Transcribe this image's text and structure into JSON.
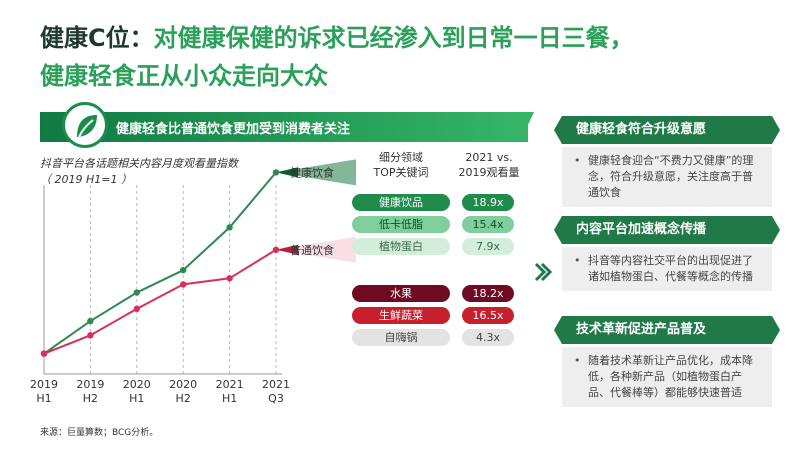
{
  "title": {
    "line1_prefix": "健康C位：",
    "line1_rest": "对健康保健的诉求已经渗入到日常一日三餐，",
    "line2": "健康轻食正从小众走向大众"
  },
  "banner": {
    "text": "健康轻食比普通饮食更加受到消费者关注"
  },
  "chart_subtitle": {
    "line1": "抖音平台各话题相关内容月度观看量指数",
    "line2": "（ 2019 H1=1 ）"
  },
  "table_headers": {
    "category_line1": "细分领域",
    "category_line2": "TOP关键词",
    "value_line1": "2021 vs.",
    "value_line2": "2019观看量"
  },
  "chart_data": {
    "type": "line",
    "x": [
      "2019 H1",
      "2019 H2",
      "2020 H1",
      "2020 H2",
      "2021 H1",
      "2021 Q3"
    ],
    "x_ticks": [
      {
        "line1": "2019",
        "line2": "H1"
      },
      {
        "line1": "2019",
        "line2": "H2"
      },
      {
        "line1": "2020",
        "line2": "H1"
      },
      {
        "line1": "2020",
        "line2": "H2"
      },
      {
        "line1": "2021",
        "line2": "H1"
      },
      {
        "line1": "2021",
        "line2": "Q3"
      }
    ],
    "series": [
      {
        "name": "健康饮食",
        "color": "#2e8a4e",
        "values": [
          1.0,
          2.6,
          4.0,
          5.1,
          7.2,
          9.9
        ]
      },
      {
        "name": "普通饮食",
        "color": "#d8305a",
        "values": [
          1.0,
          1.9,
          3.2,
          4.4,
          4.7,
          6.1
        ]
      }
    ],
    "ylim": [
      0,
      11
    ],
    "grid": "vertical dashed"
  },
  "keywords_healthy": [
    {
      "label": "健康饮品",
      "value": "18.9x",
      "style": "g1"
    },
    {
      "label": "低卡低脂",
      "value": "15.4x",
      "style": "g2"
    },
    {
      "label": "植物蛋白",
      "value": "7.9x",
      "style": "g3"
    }
  ],
  "keywords_regular": [
    {
      "label": "水果",
      "value": "18.2x",
      "style": "r1"
    },
    {
      "label": "生鲜蔬菜",
      "value": "16.5x",
      "style": "r2"
    },
    {
      "label": "自嗨锅",
      "value": "4.3x",
      "style": "r3"
    }
  ],
  "right_panels": [
    {
      "heading": "健康轻食符合升级意愿",
      "body": "健康轻食迎合“不费力又健康”的理念，符合升级意愿，关注度高于普通饮食"
    },
    {
      "heading": "内容平台加速概念传播",
      "body": "抖音等内容社交平台的出现促进了诸如植物蛋白、代餐等概念的传播"
    },
    {
      "heading": "技术革新促进产品普及",
      "body": "随着技术革新让产品优化，成本降低，各种新产品（如植物蛋白产品、代餐棒等）都能够快速普适"
    }
  ],
  "source": "来源：巨量算数；BCG分析。"
}
